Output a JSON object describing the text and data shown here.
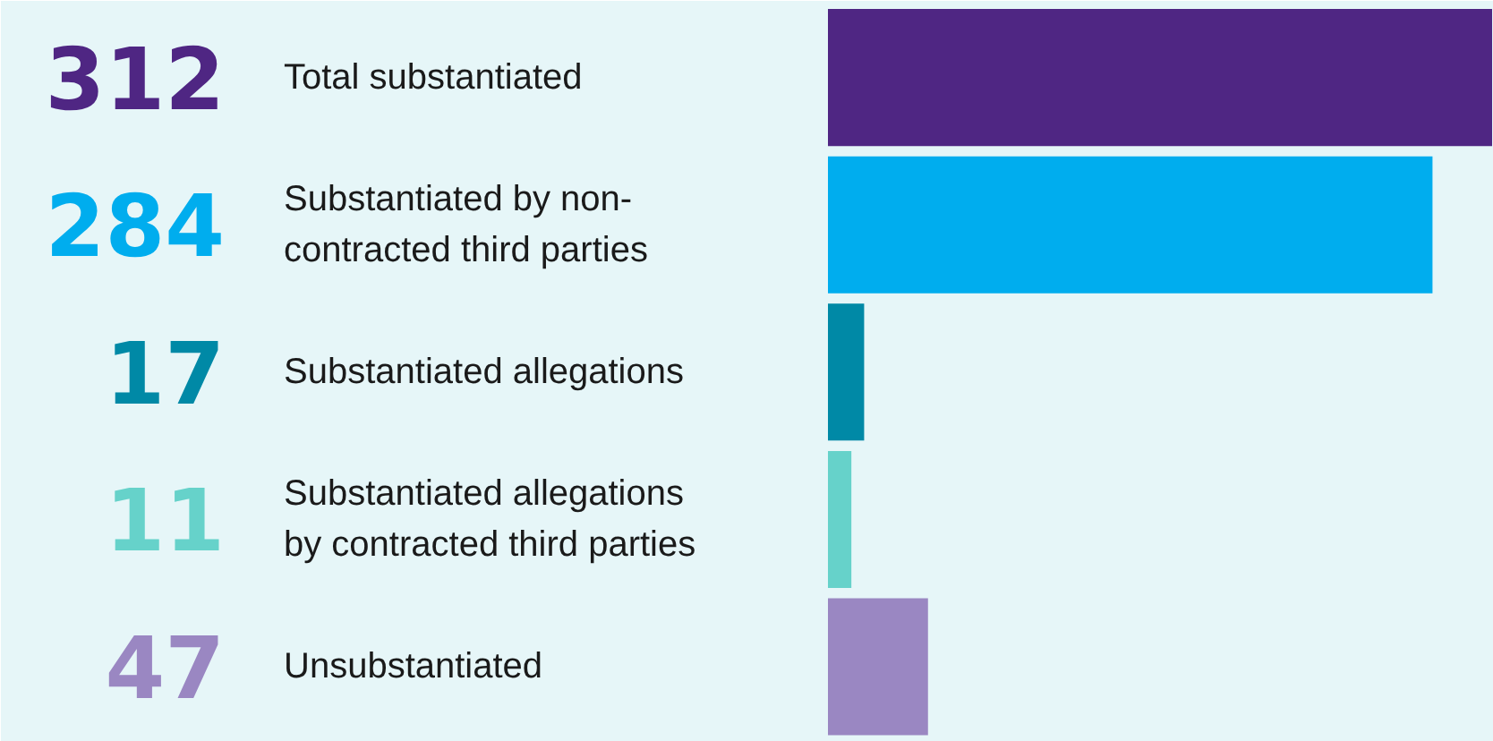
{
  "chart_data": {
    "type": "bar",
    "orientation": "horizontal",
    "categories": [
      "Total substantiated",
      "Substantiated by non-contracted third parties",
      "Substantiated allegations",
      "Substantiated allegations by contracted third parties",
      "Unsubstantiated"
    ],
    "values": [
      312,
      284,
      17,
      11,
      47
    ],
    "colors": [
      "#4f2683",
      "#00adee",
      "#0089a6",
      "#66d2ca",
      "#9a87c2"
    ],
    "data_labels": true
  }
}
